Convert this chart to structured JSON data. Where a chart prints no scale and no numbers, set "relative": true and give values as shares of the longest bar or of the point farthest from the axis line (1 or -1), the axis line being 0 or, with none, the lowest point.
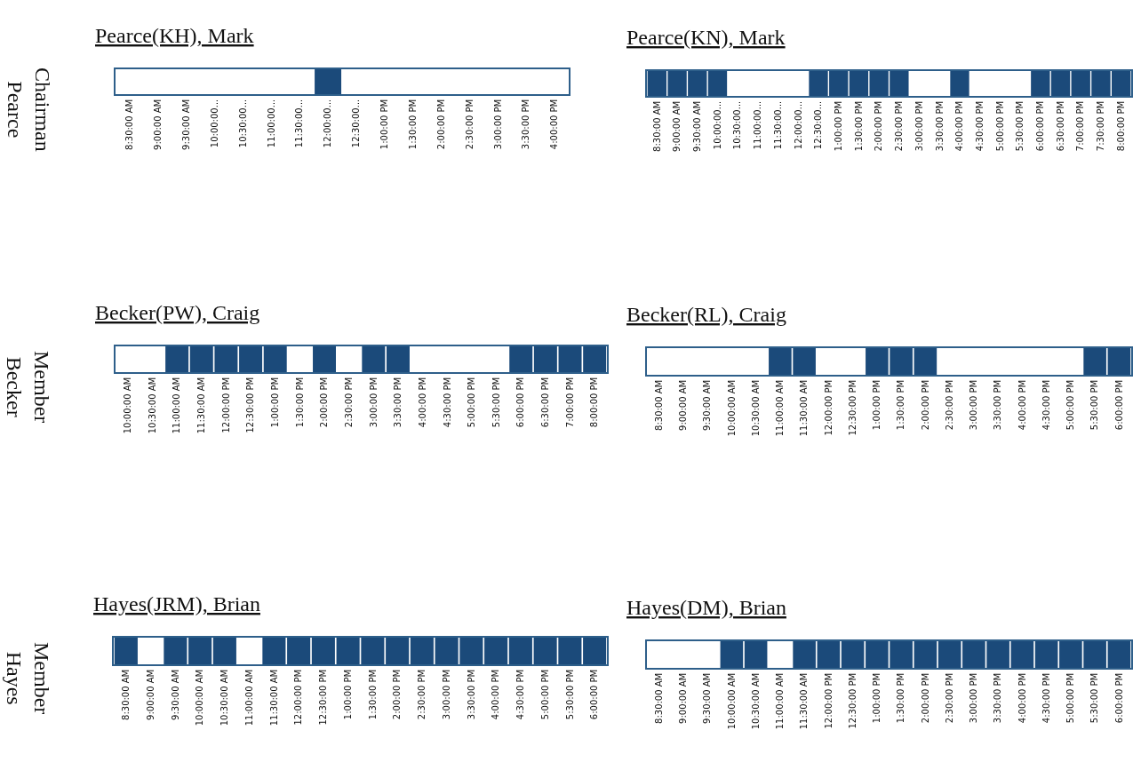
{
  "chart_data": [
    {
      "type": "bar",
      "relative": true,
      "title": "Pearce(KH), Mark",
      "annotations": [
        "Chairman\nPearce"
      ],
      "color": "#1b4a7a",
      "categories": [
        "8:30:00 AM",
        "9:00:00 AM",
        "9:30:00 AM",
        "10:00:00...",
        "10:30:00...",
        "11:00:00...",
        "11:30:00...",
        "12:00:00...",
        "12:30:00...",
        "1:00:00 PM",
        "1:30:00 PM",
        "2:00:00 PM",
        "2:30:00 PM",
        "3:00:00 PM",
        "3:30:00 PM",
        "4:00:00 PM"
      ],
      "values": [
        0,
        0,
        0,
        0,
        0,
        0,
        0,
        1,
        0,
        0,
        0,
        0,
        0,
        0,
        0,
        0
      ]
    },
    {
      "type": "bar",
      "relative": true,
      "title": "Pearce(KN), Mark",
      "color": "#1b4a7a",
      "categories": [
        "8:30:00 AM",
        "9:00:00 AM",
        "9:30:00 AM",
        "10:00:00...",
        "10:30:00...",
        "11:00:00...",
        "11:30:00...",
        "12:00:00...",
        "12:30:00...",
        "1:00:00 PM",
        "1:30:00 PM",
        "2:00:00 PM",
        "2:30:00 PM",
        "3:00:00 PM",
        "3:30:00 PM",
        "4:00:00 PM",
        "4:30:00 PM",
        "5:00:00 PM",
        "5:30:00 PM",
        "6:00:00 PM",
        "6:30:00 PM",
        "7:00:00 PM",
        "7:30:00 PM",
        "8:00:00 PM"
      ],
      "values": [
        1,
        1,
        1,
        1,
        0,
        0,
        0,
        0,
        1,
        1,
        1,
        1,
        1,
        0,
        0,
        1,
        0,
        0,
        0,
        1,
        1,
        1,
        1,
        1
      ]
    },
    {
      "type": "bar",
      "relative": true,
      "title": "Becker(PW), Craig",
      "annotations": [
        "Member\nBecker"
      ],
      "color": "#1b4a7a",
      "categories": [
        "10:00:00 AM",
        "10:30:00 AM",
        "11:00:00 AM",
        "11:30:00 AM",
        "12:00:00 PM",
        "12:30:00 PM",
        "1:00:00 PM",
        "1:30:00 PM",
        "2:00:00 PM",
        "2:30:00 PM",
        "3:00:00 PM",
        "3:30:00 PM",
        "4:00:00 PM",
        "4:30:00 PM",
        "5:00:00 PM",
        "5:30:00 PM",
        "6:00:00 PM",
        "6:30:00 PM",
        "7:00:00 PM",
        "8:00:00 PM"
      ],
      "values": [
        0,
        0,
        1,
        1,
        1,
        1,
        1,
        0,
        1,
        0,
        1,
        1,
        0,
        0,
        0,
        0,
        1,
        1,
        1,
        1
      ]
    },
    {
      "type": "bar",
      "relative": true,
      "title": "Becker(RL), Craig",
      "color": "#1b4a7a",
      "categories": [
        "8:30:00 AM",
        "9:00:00 AM",
        "9:30:00 AM",
        "10:00:00 AM",
        "10:30:00 AM",
        "11:00:00 AM",
        "11:30:00 AM",
        "12:00:00 PM",
        "12:30:00 PM",
        "1:00:00 PM",
        "1:30:00 PM",
        "2:00:00 PM",
        "2:30:00 PM",
        "3:00:00 PM",
        "3:30:00 PM",
        "4:00:00 PM",
        "4:30:00 PM",
        "5:00:00 PM",
        "5:30:00 PM",
        "6:00:00 PM"
      ],
      "values": [
        0,
        0,
        0,
        0,
        0,
        1,
        1,
        0,
        0,
        1,
        1,
        1,
        0,
        0,
        0,
        0,
        0,
        0,
        1,
        1
      ]
    },
    {
      "type": "bar",
      "relative": true,
      "title": "Hayes(JRM), Brian",
      "annotations": [
        "Member\nHayes"
      ],
      "color": "#1b4a7a",
      "categories": [
        "8:30:00 AM",
        "9:00:00 AM",
        "9:30:00 AM",
        "10:00:00 AM",
        "10:30:00 AM",
        "11:00:00 AM",
        "11:30:00 AM",
        "12:00:00 PM",
        "12:30:00 PM",
        "1:00:00 PM",
        "1:30:00 PM",
        "2:00:00 PM",
        "2:30:00 PM",
        "3:00:00 PM",
        "3:30:00 PM",
        "4:00:00 PM",
        "4:30:00 PM",
        "5:00:00 PM",
        "5:30:00 PM",
        "6:00:00 PM"
      ],
      "values": [
        1,
        0,
        1,
        1,
        1,
        0,
        1,
        1,
        1,
        1,
        1,
        1,
        1,
        1,
        1,
        1,
        1,
        1,
        1,
        1
      ]
    },
    {
      "type": "bar",
      "relative": true,
      "title": "Hayes(DM), Brian",
      "color": "#1b4a7a",
      "categories": [
        "8:30:00 AM",
        "9:00:00 AM",
        "9:30:00 AM",
        "10:00:00 AM",
        "10:30:00 AM",
        "11:00:00 AM",
        "11:30:00 AM",
        "12:00:00 PM",
        "12:30:00 PM",
        "1:00:00 PM",
        "1:30:00 PM",
        "2:00:00 PM",
        "2:30:00 PM",
        "3:00:00 PM",
        "3:30:00 PM",
        "4:00:00 PM",
        "4:30:00 PM",
        "5:00:00 PM",
        "5:30:00 PM",
        "6:00:00 PM"
      ],
      "values": [
        0,
        0,
        0,
        1,
        1,
        0,
        1,
        1,
        1,
        1,
        1,
        1,
        1,
        1,
        1,
        1,
        1,
        1,
        1,
        1
      ]
    }
  ]
}
